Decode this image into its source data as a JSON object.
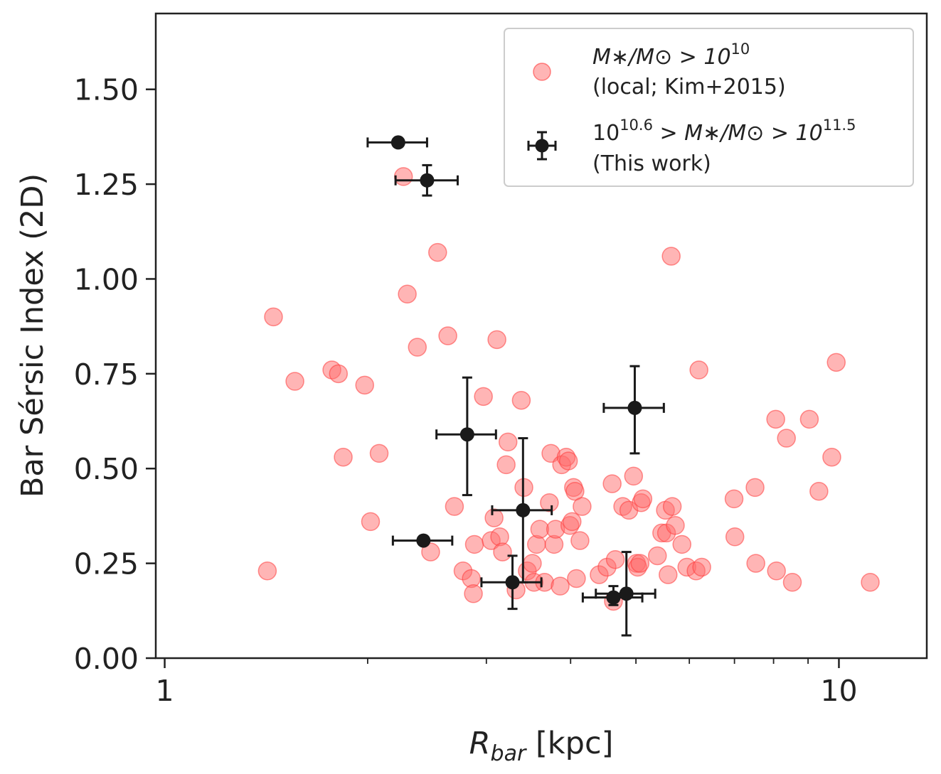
{
  "chart_data": {
    "type": "scatter",
    "xlabel_main": "R",
    "xlabel_sub": "bar",
    "xlabel_unit": " [kpc]",
    "ylabel": "Bar Sérsic Index (2D)",
    "xscale": "log",
    "xlim": [
      0.97,
      13.5
    ],
    "ylim": [
      0.0,
      1.7
    ],
    "xticks": [
      {
        "value": 1,
        "label": "1"
      },
      {
        "value": 10,
        "label": "10"
      }
    ],
    "yticks": [
      {
        "value": 0.0,
        "label": "0.00"
      },
      {
        "value": 0.25,
        "label": "0.25"
      },
      {
        "value": 0.5,
        "label": "0.50"
      },
      {
        "value": 0.75,
        "label": "0.75"
      },
      {
        "value": 1.0,
        "label": "1.00"
      },
      {
        "value": 1.25,
        "label": "1.25"
      },
      {
        "value": 1.5,
        "label": "1.50"
      }
    ],
    "legend_placement": "top-right",
    "grid": false,
    "colors": {
      "local": "#ff6b6b",
      "this_work": "#1a1a1a",
      "axes": "#222222"
    },
    "series": [
      {
        "key": "local",
        "legend_math": "M∗/M⊙ > 10",
        "legend_exp": "10",
        "legend_sub": "(local; Kim+2015)",
        "points": [
          [
            1.45,
            0.9
          ],
          [
            1.56,
            0.73
          ],
          [
            1.42,
            0.23
          ],
          [
            1.77,
            0.76
          ],
          [
            1.81,
            0.75
          ],
          [
            1.84,
            0.53
          ],
          [
            1.98,
            0.72
          ],
          [
            2.02,
            0.36
          ],
          [
            2.08,
            0.54
          ],
          [
            2.26,
            1.27
          ],
          [
            2.29,
            0.96
          ],
          [
            2.37,
            0.82
          ],
          [
            2.48,
            0.28
          ],
          [
            2.54,
            1.07
          ],
          [
            2.63,
            0.85
          ],
          [
            2.69,
            0.4
          ],
          [
            2.77,
            0.23
          ],
          [
            2.85,
            0.21
          ],
          [
            2.87,
            0.17
          ],
          [
            2.88,
            0.3
          ],
          [
            2.97,
            0.69
          ],
          [
            3.05,
            0.31
          ],
          [
            3.08,
            0.37
          ],
          [
            3.11,
            0.84
          ],
          [
            3.14,
            0.32
          ],
          [
            3.17,
            0.28
          ],
          [
            3.21,
            0.51
          ],
          [
            3.23,
            0.57
          ],
          [
            3.32,
            0.18
          ],
          [
            3.38,
            0.68
          ],
          [
            3.41,
            0.45
          ],
          [
            3.45,
            0.23
          ],
          [
            3.51,
            0.25
          ],
          [
            3.53,
            0.2
          ],
          [
            3.56,
            0.3
          ],
          [
            3.6,
            0.34
          ],
          [
            3.66,
            0.2
          ],
          [
            3.72,
            0.41
          ],
          [
            3.74,
            0.54
          ],
          [
            3.78,
            0.3
          ],
          [
            3.8,
            0.34
          ],
          [
            3.86,
            0.19
          ],
          [
            3.88,
            0.51
          ],
          [
            3.94,
            0.53
          ],
          [
            3.97,
            0.52
          ],
          [
            3.99,
            0.35
          ],
          [
            4.02,
            0.36
          ],
          [
            4.04,
            0.45
          ],
          [
            4.06,
            0.44
          ],
          [
            4.08,
            0.21
          ],
          [
            4.13,
            0.31
          ],
          [
            4.16,
            0.4
          ],
          [
            4.41,
            0.22
          ],
          [
            4.53,
            0.24
          ],
          [
            4.61,
            0.46
          ],
          [
            4.63,
            0.15
          ],
          [
            4.66,
            0.26
          ],
          [
            4.78,
            0.4
          ],
          [
            4.88,
            0.39
          ],
          [
            4.96,
            0.48
          ],
          [
            5.01,
            0.25
          ],
          [
            5.03,
            0.24
          ],
          [
            5.07,
            0.25
          ],
          [
            5.09,
            0.41
          ],
          [
            5.12,
            0.42
          ],
          [
            5.38,
            0.27
          ],
          [
            5.46,
            0.33
          ],
          [
            5.53,
            0.39
          ],
          [
            5.55,
            0.33
          ],
          [
            5.58,
            0.22
          ],
          [
            5.64,
            1.06
          ],
          [
            5.66,
            0.4
          ],
          [
            5.72,
            0.35
          ],
          [
            5.85,
            0.3
          ],
          [
            5.95,
            0.24
          ],
          [
            6.14,
            0.23
          ],
          [
            6.2,
            0.76
          ],
          [
            6.26,
            0.24
          ],
          [
            6.99,
            0.42
          ],
          [
            7.01,
            0.32
          ],
          [
            7.51,
            0.45
          ],
          [
            7.53,
            0.25
          ],
          [
            8.06,
            0.63
          ],
          [
            8.08,
            0.23
          ],
          [
            8.36,
            0.58
          ],
          [
            8.53,
            0.2
          ],
          [
            9.04,
            0.63
          ],
          [
            9.34,
            0.44
          ],
          [
            9.76,
            0.53
          ],
          [
            9.91,
            0.78
          ],
          [
            11.13,
            0.2
          ]
        ]
      },
      {
        "key": "this_work",
        "legend_pre": "10",
        "legend_exp1": "10.6",
        "legend_mid": " > M∗/M⊙ > 10",
        "legend_exp2": "11.5",
        "legend_sub": "(This work)",
        "points": [
          {
            "x": 2.22,
            "y": 1.36,
            "x_lo": 2.0,
            "x_hi": 2.45,
            "y_lo": 1.36,
            "y_hi": 1.36
          },
          {
            "x": 2.45,
            "y": 1.26,
            "x_lo": 2.2,
            "x_hi": 2.72,
            "y_lo": 1.22,
            "y_hi": 1.3
          },
          {
            "x": 2.81,
            "y": 0.59,
            "x_lo": 2.53,
            "x_hi": 3.1,
            "y_lo": 0.43,
            "y_hi": 0.74
          },
          {
            "x": 2.42,
            "y": 0.31,
            "x_lo": 2.18,
            "x_hi": 2.67,
            "y_lo": 0.31,
            "y_hi": 0.31
          },
          {
            "x": 3.28,
            "y": 0.2,
            "x_lo": 2.95,
            "x_hi": 3.62,
            "y_lo": 0.13,
            "y_hi": 0.27
          },
          {
            "x": 3.4,
            "y": 0.39,
            "x_lo": 3.06,
            "x_hi": 3.75,
            "y_lo": 0.2,
            "y_hi": 0.58
          },
          {
            "x": 4.63,
            "y": 0.16,
            "x_lo": 4.17,
            "x_hi": 5.11,
            "y_lo": 0.14,
            "y_hi": 0.19
          },
          {
            "x": 4.84,
            "y": 0.17,
            "x_lo": 4.36,
            "x_hi": 5.34,
            "y_lo": 0.06,
            "y_hi": 0.28
          },
          {
            "x": 4.98,
            "y": 0.66,
            "x_lo": 4.48,
            "x_hi": 5.5,
            "y_lo": 0.54,
            "y_hi": 0.77
          }
        ]
      }
    ]
  }
}
